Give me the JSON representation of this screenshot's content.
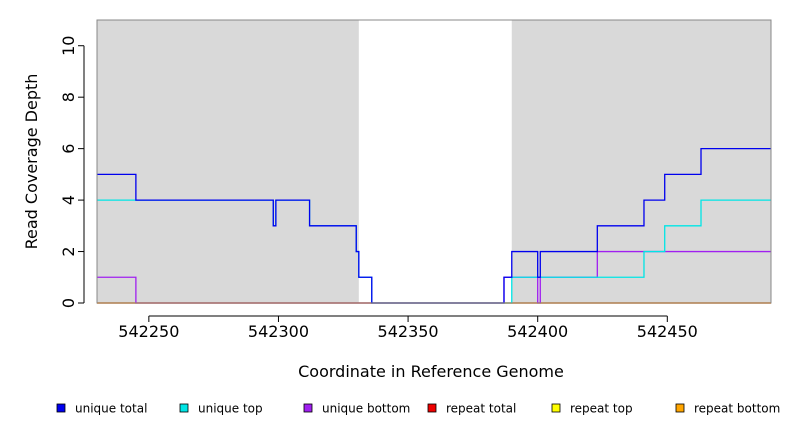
{
  "chart_data": {
    "type": "line",
    "title": "",
    "xlabel": "Coordinate in Reference Genome",
    "ylabel": "Read Coverage Depth",
    "xlim": [
      542230,
      542490
    ],
    "ylim": [
      0,
      11
    ],
    "x_ticks": [
      542250,
      542300,
      542350,
      542400,
      542450
    ],
    "y_ticks": [
      0,
      2,
      4,
      6,
      8,
      10
    ],
    "grid": false,
    "legend_position": "bottom",
    "shaded_regions": [
      {
        "x_start": 542230,
        "x_end": 542331,
        "color": "#d9d9d9"
      },
      {
        "x_start": 542390,
        "x_end": 542490,
        "color": "#d9d9d9"
      }
    ],
    "series": [
      {
        "name": "unique total",
        "color": "#0000ee",
        "steps": [
          [
            542230,
            5
          ],
          [
            542245,
            4
          ],
          [
            542298,
            3
          ],
          [
            542299,
            4
          ],
          [
            542312,
            3
          ],
          [
            542330,
            2
          ],
          [
            542331,
            1
          ],
          [
            542336,
            0
          ],
          [
            542387,
            1
          ],
          [
            542390,
            2
          ],
          [
            542400,
            1
          ],
          [
            542401,
            2
          ],
          [
            542423,
            3
          ],
          [
            542441,
            4
          ],
          [
            542449,
            5
          ],
          [
            542463,
            6
          ],
          [
            542490,
            6
          ]
        ]
      },
      {
        "name": "unique top",
        "color": "#00e5e5",
        "steps": [
          [
            542230,
            4
          ],
          [
            542298,
            3
          ],
          [
            542299,
            4
          ],
          [
            542312,
            3
          ],
          [
            542330,
            2
          ],
          [
            542331,
            1
          ],
          [
            542336,
            0
          ],
          [
            542390,
            1
          ],
          [
            542441,
            2
          ],
          [
            542449,
            3
          ],
          [
            542463,
            4
          ],
          [
            542490,
            4
          ]
        ]
      },
      {
        "name": "unique bottom",
        "color": "#a020f0",
        "steps": [
          [
            542230,
            1
          ],
          [
            542245,
            0
          ],
          [
            542387,
            1
          ],
          [
            542390,
            1
          ],
          [
            542400,
            0
          ],
          [
            542401,
            1
          ],
          [
            542423,
            2
          ],
          [
            542490,
            2
          ]
        ]
      },
      {
        "name": "repeat total",
        "color": "#ee0000",
        "steps": [
          [
            542230,
            0
          ],
          [
            542490,
            0
          ]
        ]
      },
      {
        "name": "repeat top",
        "color": "#ffff00",
        "steps": [
          [
            542230,
            0
          ],
          [
            542490,
            0
          ]
        ]
      },
      {
        "name": "repeat bottom",
        "color": "#ffa500",
        "steps": [
          [
            542230,
            0
          ],
          [
            542490,
            0
          ]
        ]
      }
    ]
  }
}
